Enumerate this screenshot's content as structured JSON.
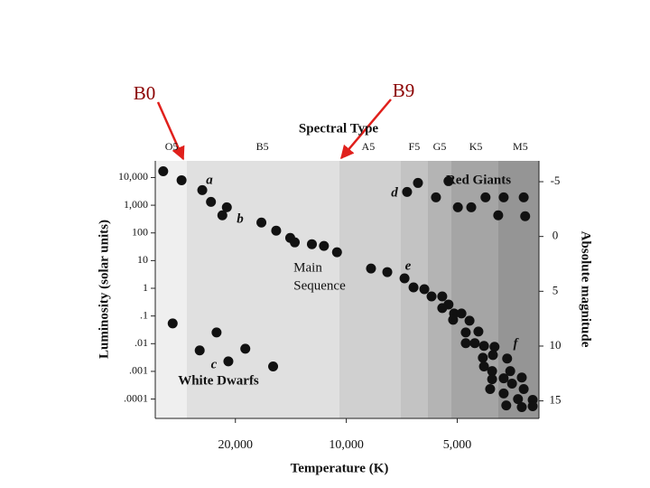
{
  "chart_data": {
    "type": "scatter",
    "callouts": [
      "B0",
      "B9"
    ],
    "top_axis_label": "Spectral Type",
    "x_label": "Temperature (K)",
    "y_label": "Luminosity (solar units)",
    "y2_label": "Absolute magnitude",
    "annotations": [
      "a",
      "b",
      "c",
      "d",
      "e",
      "f",
      "Red Giants",
      "White Dwarfs",
      "Main",
      "Sequence"
    ],
    "x_scale": "log",
    "y_scale": "log",
    "xlim": [
      33000,
      3000
    ],
    "xticks": [
      {
        "value": 20000,
        "label": "20,000"
      },
      {
        "value": 10000,
        "label": "10,000"
      },
      {
        "value": 5000,
        "label": "5,000"
      }
    ],
    "x2ticks": [
      {
        "value": 29800,
        "label": "O5"
      },
      {
        "value": 16900,
        "label": "B5"
      },
      {
        "value": 8720,
        "label": "A5"
      },
      {
        "value": 6540,
        "label": "F5"
      },
      {
        "value": 5580,
        "label": "G5"
      },
      {
        "value": 4450,
        "label": "K5"
      },
      {
        "value": 3370,
        "label": "M5"
      }
    ],
    "ylim": [
      2e-05,
      40000
    ],
    "yticks": [
      {
        "value": 10000,
        "label": "10,000"
      },
      {
        "value": 1000,
        "label": "1,000"
      },
      100,
      10,
      1,
      {
        "value": 0.1,
        "label": ".1"
      },
      {
        "value": 0.01,
        "label": ".01"
      },
      {
        "value": 0.001,
        "label": ".001"
      },
      {
        "value": 0.0001,
        "label": ".0001"
      }
    ],
    "y2lim": [
      -6.9,
      16.6
    ],
    "y2ticks": [
      -5,
      0,
      5,
      10,
      15
    ],
    "color": "#111111",
    "x": [
      31400,
      28000,
      24600,
      23300,
      21100,
      21700,
      17000,
      15500,
      14200,
      13800,
      12400,
      11500,
      10600,
      8570,
      7740,
      6950,
      6570,
      6140,
      5870,
      5490,
      5280,
      5490,
      5100,
      4870,
      4630,
      5130,
      4740,
      4380,
      4740,
      4480,
      4230,
      3960,
      4260,
      4000,
      4230,
      4020,
      3660,
      3590,
      3740,
      4020,
      4070,
      3740,
      3550,
      3340,
      3300,
      3420,
      3120,
      3680,
      3340,
      3120,
      6840,
      6390,
      5710,
      5280,
      4980,
      4580,
      4190,
      3870,
      3740,
      3300,
      3270,
      29600,
      25000,
      22500,
      20900,
      18800,
      15800
    ],
    "values": [
      16900,
      7980,
      3510,
      1320,
      845,
      431,
      237,
      121,
      66,
      45.6,
      39.2,
      33.8,
      20,
      5.19,
      3.85,
      2.28,
      1.08,
      0.93,
      0.51,
      0.51,
      0.26,
      0.193,
      0.123,
      0.123,
      0.0675,
      0.0728,
      0.0255,
      0.0275,
      0.0104,
      0.0104,
      0.0083,
      0.0077,
      0.0031,
      0.0039,
      0.0015,
      0.00102,
      0.0029,
      0.00102,
      0.00056,
      0.00052,
      0.00023,
      0.00016,
      0.00036,
      0.0006,
      0.00023,
      0.0001,
      9.3e-05,
      5.9e-05,
      5.1e-05,
      5.5e-05,
      3020,
      6380,
      1930,
      7410,
      845,
      845,
      1930,
      431,
      1930,
      1930,
      400,
      0.054,
      0.0057,
      0.0255,
      0.0023,
      0.0066,
      0.0015
    ]
  }
}
